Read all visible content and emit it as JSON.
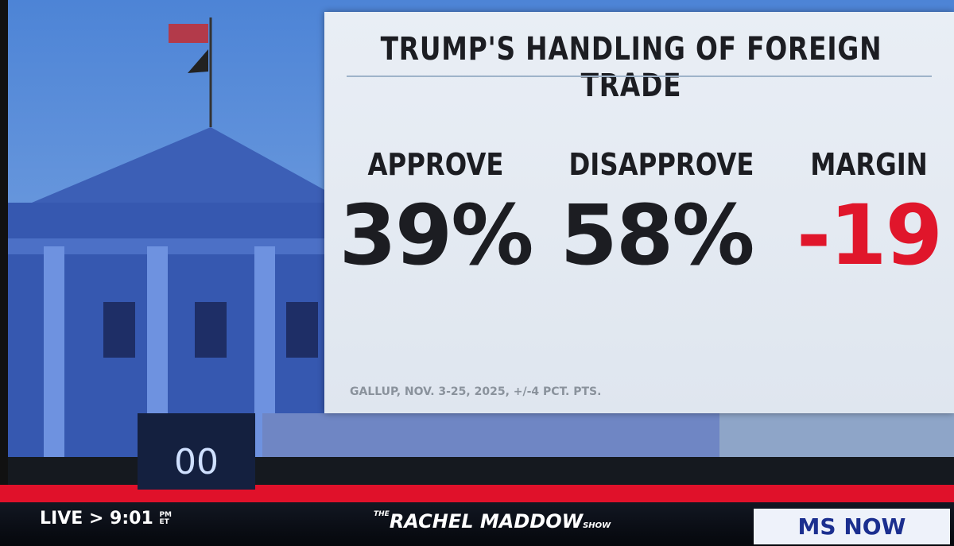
{
  "graphic": {
    "title": "TRUMP'S HANDLING OF FOREIGN TRADE",
    "columns": [
      {
        "label": "APPROVE",
        "value": "39%"
      },
      {
        "label": "DISAPPROVE",
        "value": "58%"
      },
      {
        "label": "MARGIN",
        "value": "-19"
      }
    ],
    "source": "GALLUP, NOV. 3-25, 2025, +/-4 PCT. PTS."
  },
  "bug": "00",
  "lower_bar": {
    "live": "LIVE",
    "arrow": ">",
    "time": "9:01",
    "time_suffix": [
      "PM",
      "ET"
    ],
    "show": {
      "prefix": "THE",
      "name": "RACHEL MADDOW",
      "suffix": "SHOW"
    },
    "network": "MS NOW"
  }
}
